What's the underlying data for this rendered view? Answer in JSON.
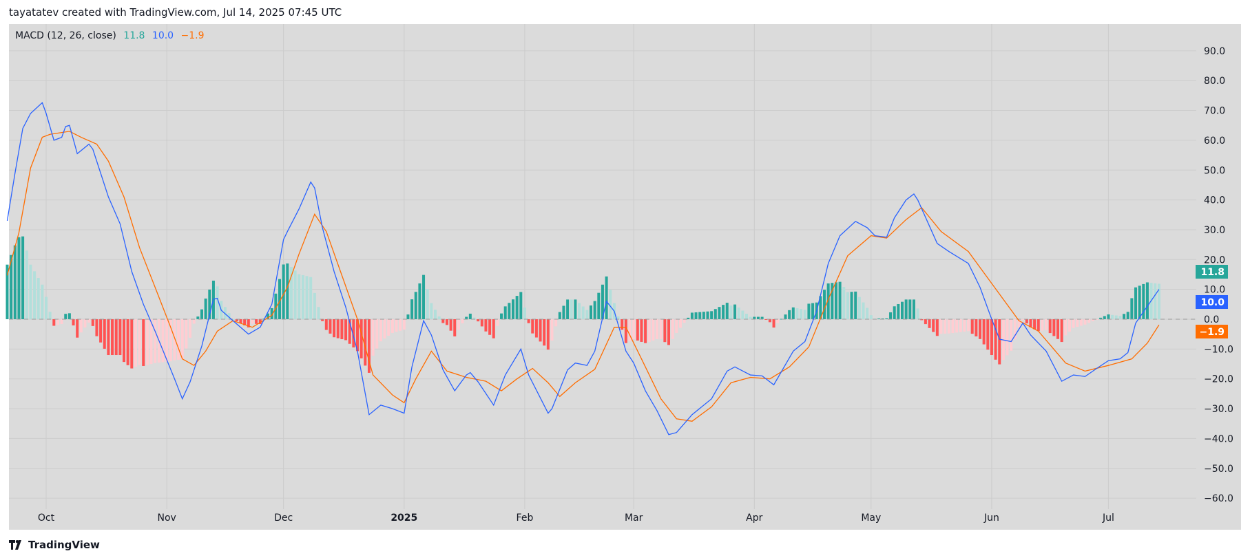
{
  "header": {
    "credit": "tayatatev created with TradingView.com, Jul 14, 2025 07:45 UTC"
  },
  "legend": {
    "name": "MACD (12, 26, close)",
    "histogram_value": "11.8",
    "macd_value": "10.0",
    "signal_value": "−1.9"
  },
  "footer": {
    "brand": "TradingView",
    "logo_icon": "tradingview-logo-icon"
  },
  "colors": {
    "macd": "#2962ff",
    "signal": "#ff6d00",
    "hist_up_strong": "#26a69a",
    "hist_up_weak": "#b2dfdb",
    "hist_down_strong": "#ff5252",
    "hist_down_weak": "#ffcdd2",
    "background": "#dbdbdb",
    "grid": "#cccccc"
  },
  "chart_data": {
    "type": "line",
    "indicator": "MACD",
    "grid": true,
    "ylim": [
      -60,
      90
    ],
    "y_ticks": [
      "90.0",
      "80.0",
      "70.0",
      "60.0",
      "50.0",
      "40.0",
      "30.0",
      "20.0",
      "10.0",
      "0.0",
      "−10.0",
      "−20.0",
      "−30.0",
      "−40.0",
      "−50.0",
      "−60.0"
    ],
    "x_ticks": [
      {
        "label": "Oct",
        "date": "2024-10-01"
      },
      {
        "label": "Nov",
        "date": "2024-11-01"
      },
      {
        "label": "Dec",
        "date": "2024-12-01"
      },
      {
        "label": "2025",
        "date": "2025-01-01",
        "bold": true
      },
      {
        "label": "Feb",
        "date": "2025-02-01"
      },
      {
        "label": "Mar",
        "date": "2025-03-01"
      },
      {
        "label": "Apr",
        "date": "2025-04-01"
      },
      {
        "label": "May",
        "date": "2025-05-01"
      },
      {
        "label": "Jun",
        "date": "2025-06-01"
      },
      {
        "label": "Jul",
        "date": "2025-07-01"
      }
    ],
    "last_values": {
      "histogram": 11.8,
      "macd": 10.0,
      "signal": -1.9
    },
    "macd": [
      [
        "2024-09-21",
        33
      ],
      [
        "2024-09-23",
        49
      ],
      [
        "2024-09-25",
        64
      ],
      [
        "2024-09-27",
        69
      ],
      [
        "2024-09-30",
        72.6
      ],
      [
        "2024-10-01",
        69
      ],
      [
        "2024-10-03",
        60
      ],
      [
        "2024-10-05",
        61
      ],
      [
        "2024-10-06",
        64.6
      ],
      [
        "2024-10-07",
        65
      ],
      [
        "2024-10-09",
        55.5
      ],
      [
        "2024-10-12",
        58.7
      ],
      [
        "2024-10-13",
        57
      ],
      [
        "2024-10-17",
        41
      ],
      [
        "2024-10-20",
        32
      ],
      [
        "2024-10-23",
        16
      ],
      [
        "2024-10-26",
        5
      ],
      [
        "2024-10-29",
        -4
      ],
      [
        "2024-11-03",
        -20
      ],
      [
        "2024-11-05",
        -26.7
      ],
      [
        "2024-11-07",
        -21
      ],
      [
        "2024-11-10",
        -9
      ],
      [
        "2024-11-13",
        6.7
      ],
      [
        "2024-11-14",
        7
      ],
      [
        "2024-11-15",
        3
      ],
      [
        "2024-11-18",
        -0.5
      ],
      [
        "2024-11-22",
        -5
      ],
      [
        "2024-11-25",
        -2.7
      ],
      [
        "2024-11-28",
        5
      ],
      [
        "2024-12-01",
        26.7
      ],
      [
        "2024-12-02",
        29.4
      ],
      [
        "2024-12-05",
        37
      ],
      [
        "2024-12-08",
        46
      ],
      [
        "2024-12-09",
        44
      ],
      [
        "2024-12-11",
        30.7
      ],
      [
        "2024-12-14",
        16
      ],
      [
        "2024-12-17",
        4
      ],
      [
        "2024-12-20",
        -10.7
      ],
      [
        "2024-12-23",
        -32
      ],
      [
        "2024-12-26",
        -28.8
      ],
      [
        "2024-12-29",
        -30
      ],
      [
        "2025-01-01",
        -31.5
      ],
      [
        "2025-01-03",
        -16
      ],
      [
        "2025-01-06",
        -0.5
      ],
      [
        "2025-01-08",
        -5.3
      ],
      [
        "2025-01-11",
        -17
      ],
      [
        "2025-01-14",
        -24
      ],
      [
        "2025-01-17",
        -18.7
      ],
      [
        "2025-01-18",
        -17.9
      ],
      [
        "2025-01-20",
        -21
      ],
      [
        "2025-01-24",
        -28.8
      ],
      [
        "2025-01-27",
        -18.7
      ],
      [
        "2025-01-31",
        -10
      ],
      [
        "2025-02-02",
        -18.7
      ],
      [
        "2025-02-07",
        -31.5
      ],
      [
        "2025-02-08",
        -30
      ],
      [
        "2025-02-12",
        -17
      ],
      [
        "2025-02-14",
        -14.7
      ],
      [
        "2025-02-17",
        -15.5
      ],
      [
        "2025-02-19",
        -10.7
      ],
      [
        "2025-02-22",
        6
      ],
      [
        "2025-02-24",
        2.7
      ],
      [
        "2025-02-27",
        -10.7
      ],
      [
        "2025-03-01",
        -14.7
      ],
      [
        "2025-03-04",
        -24
      ],
      [
        "2025-03-07",
        -30.7
      ],
      [
        "2025-03-10",
        -38.7
      ],
      [
        "2025-03-12",
        -38
      ],
      [
        "2025-03-16",
        -32
      ],
      [
        "2025-03-21",
        -26.7
      ],
      [
        "2025-03-25",
        -17.4
      ],
      [
        "2025-03-27",
        -16
      ],
      [
        "2025-03-31",
        -18.7
      ],
      [
        "2025-04-03",
        -19
      ],
      [
        "2025-04-06",
        -22
      ],
      [
        "2025-04-11",
        -10.7
      ],
      [
        "2025-04-14",
        -7.5
      ],
      [
        "2025-04-17",
        2.7
      ],
      [
        "2025-04-20",
        18.7
      ],
      [
        "2025-04-23",
        28
      ],
      [
        "2025-04-27",
        32.8
      ],
      [
        "2025-04-30",
        30.7
      ],
      [
        "2025-05-02",
        28
      ],
      [
        "2025-05-05",
        27.5
      ],
      [
        "2025-05-07",
        34
      ],
      [
        "2025-05-10",
        40
      ],
      [
        "2025-05-12",
        42
      ],
      [
        "2025-05-13",
        40
      ],
      [
        "2025-05-18",
        25.4
      ],
      [
        "2025-05-21",
        22.7
      ],
      [
        "2025-05-26",
        18.7
      ],
      [
        "2025-05-29",
        10.7
      ],
      [
        "2025-06-01",
        0
      ],
      [
        "2025-06-03",
        -6.7
      ],
      [
        "2025-06-06",
        -7.5
      ],
      [
        "2025-06-09",
        -1.3
      ],
      [
        "2025-06-11",
        -5.3
      ],
      [
        "2025-06-15",
        -10.7
      ],
      [
        "2025-06-19",
        -20.8
      ],
      [
        "2025-06-22",
        -18.7
      ],
      [
        "2025-06-25",
        -19.2
      ],
      [
        "2025-06-28",
        -16.5
      ],
      [
        "2025-07-01",
        -13.9
      ],
      [
        "2025-07-04",
        -13.3
      ],
      [
        "2025-07-06",
        -11.2
      ],
      [
        "2025-07-08",
        -1.3
      ],
      [
        "2025-07-14",
        10.0
      ]
    ],
    "signal": [
      [
        "2024-09-21",
        14.7
      ],
      [
        "2024-09-24",
        29
      ],
      [
        "2024-09-27",
        50.7
      ],
      [
        "2024-09-30",
        61
      ],
      [
        "2024-10-02",
        62
      ],
      [
        "2024-10-07",
        63
      ],
      [
        "2024-10-10",
        61
      ],
      [
        "2024-10-14",
        58.7
      ],
      [
        "2024-10-17",
        53
      ],
      [
        "2024-10-21",
        41
      ],
      [
        "2024-10-25",
        24
      ],
      [
        "2024-10-29",
        10.7
      ],
      [
        "2024-11-02",
        -2.7
      ],
      [
        "2024-11-05",
        -13.3
      ],
      [
        "2024-11-08",
        -15.5
      ],
      [
        "2024-11-11",
        -10.7
      ],
      [
        "2024-11-14",
        -4
      ],
      [
        "2024-11-18",
        -0.5
      ],
      [
        "2024-11-23",
        -2.7
      ],
      [
        "2024-11-28",
        1.3
      ],
      [
        "2024-12-02",
        10.7
      ],
      [
        "2024-12-05",
        21.9
      ],
      [
        "2024-12-09",
        35.2
      ],
      [
        "2024-12-12",
        29.4
      ],
      [
        "2024-12-16",
        14.7
      ],
      [
        "2024-12-20",
        0
      ],
      [
        "2024-12-24",
        -18.7
      ],
      [
        "2024-12-29",
        -25.4
      ],
      [
        "2025-01-01",
        -28
      ],
      [
        "2025-01-04",
        -20
      ],
      [
        "2025-01-08",
        -10.7
      ],
      [
        "2025-01-12",
        -17.4
      ],
      [
        "2025-01-17",
        -19.5
      ],
      [
        "2025-01-22",
        -20.8
      ],
      [
        "2025-01-26",
        -24
      ],
      [
        "2025-01-30",
        -20
      ],
      [
        "2025-02-03",
        -16.5
      ],
      [
        "2025-02-07",
        -21.3
      ],
      [
        "2025-02-10",
        -25.9
      ],
      [
        "2025-02-14",
        -21.3
      ],
      [
        "2025-02-19",
        -16.8
      ],
      [
        "2025-02-24",
        -2.7
      ],
      [
        "2025-02-27",
        -2.7
      ],
      [
        "2025-03-03",
        -13.3
      ],
      [
        "2025-03-08",
        -26.7
      ],
      [
        "2025-03-12",
        -33.4
      ],
      [
        "2025-03-16",
        -34.2
      ],
      [
        "2025-03-21",
        -29.4
      ],
      [
        "2025-03-26",
        -21.3
      ],
      [
        "2025-03-31",
        -19.5
      ],
      [
        "2025-04-05",
        -20
      ],
      [
        "2025-04-10",
        -16
      ],
      [
        "2025-04-15",
        -9.3
      ],
      [
        "2025-04-20",
        6.7
      ],
      [
        "2025-04-25",
        21.3
      ],
      [
        "2025-05-01",
        28
      ],
      [
        "2025-05-05",
        27.2
      ],
      [
        "2025-05-10",
        33.4
      ],
      [
        "2025-05-14",
        37.4
      ],
      [
        "2025-05-19",
        29.4
      ],
      [
        "2025-05-26",
        22.7
      ],
      [
        "2025-06-01",
        12
      ],
      [
        "2025-06-08",
        -0.5
      ],
      [
        "2025-06-13",
        -4
      ],
      [
        "2025-06-20",
        -14.7
      ],
      [
        "2025-06-25",
        -17.4
      ],
      [
        "2025-07-01",
        -15.5
      ],
      [
        "2025-07-07",
        -13.3
      ],
      [
        "2025-07-11",
        -8
      ],
      [
        "2025-07-14",
        -1.9
      ]
    ]
  }
}
